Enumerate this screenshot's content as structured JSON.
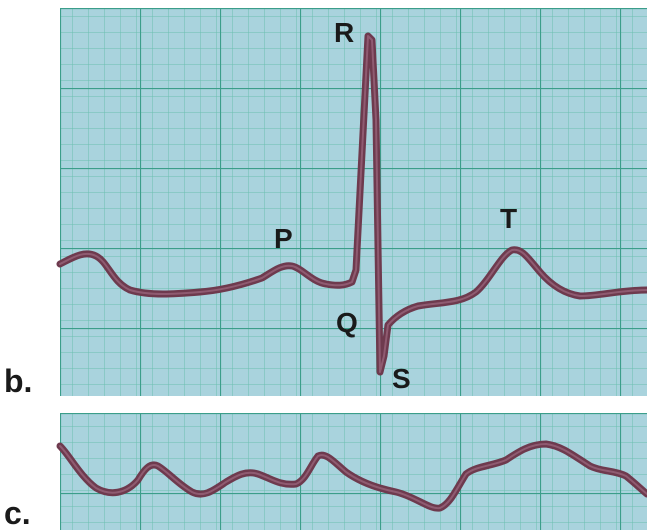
{
  "panels": [
    {
      "id": "b",
      "label": "b.",
      "wave_labels": [
        "P",
        "Q",
        "R",
        "S",
        "T"
      ]
    },
    {
      "id": "c",
      "label": "c."
    }
  ],
  "colors": {
    "grid_background": "#a9d3dd",
    "grid_minor": "#5cb3a3",
    "grid_major": "#3b9e8a",
    "trace": "#6e3a4e",
    "text": "#1a1a1a"
  }
}
